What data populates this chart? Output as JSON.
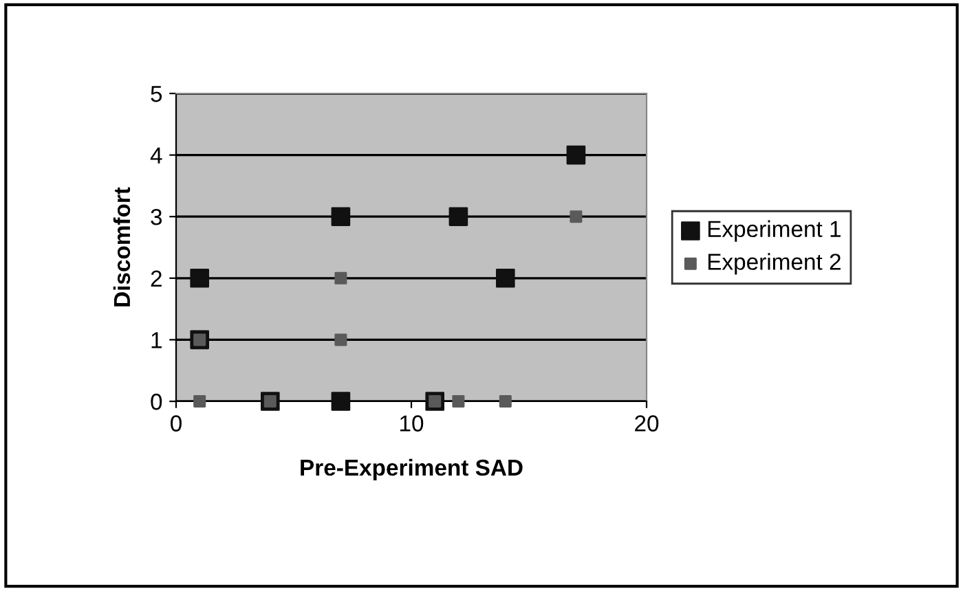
{
  "chart_data": {
    "type": "scatter",
    "xlabel": "Pre-Experiment SAD",
    "ylabel": "Discomfort",
    "series": [
      {
        "name": "Experiment 1",
        "color": "#111111",
        "x": [
          1,
          1,
          4,
          7,
          7,
          11,
          12,
          14,
          17
        ],
        "values": [
          2,
          1,
          0,
          3,
          0,
          0,
          3,
          2,
          4
        ]
      },
      {
        "name": "Experiment 2",
        "color": "#5a5a5a",
        "x": [
          1,
          1,
          4,
          7,
          7,
          11,
          12,
          14,
          17
        ],
        "values": [
          1,
          0,
          0,
          2,
          1,
          0,
          0,
          0,
          3
        ]
      }
    ],
    "xlim": [
      0,
      20
    ],
    "xticks": [
      0,
      10,
      20
    ],
    "ylim": [
      0,
      5
    ],
    "yticks": [
      0,
      1,
      2,
      3,
      4,
      5
    ],
    "grid": "y",
    "legend": "right",
    "marker": "square"
  }
}
